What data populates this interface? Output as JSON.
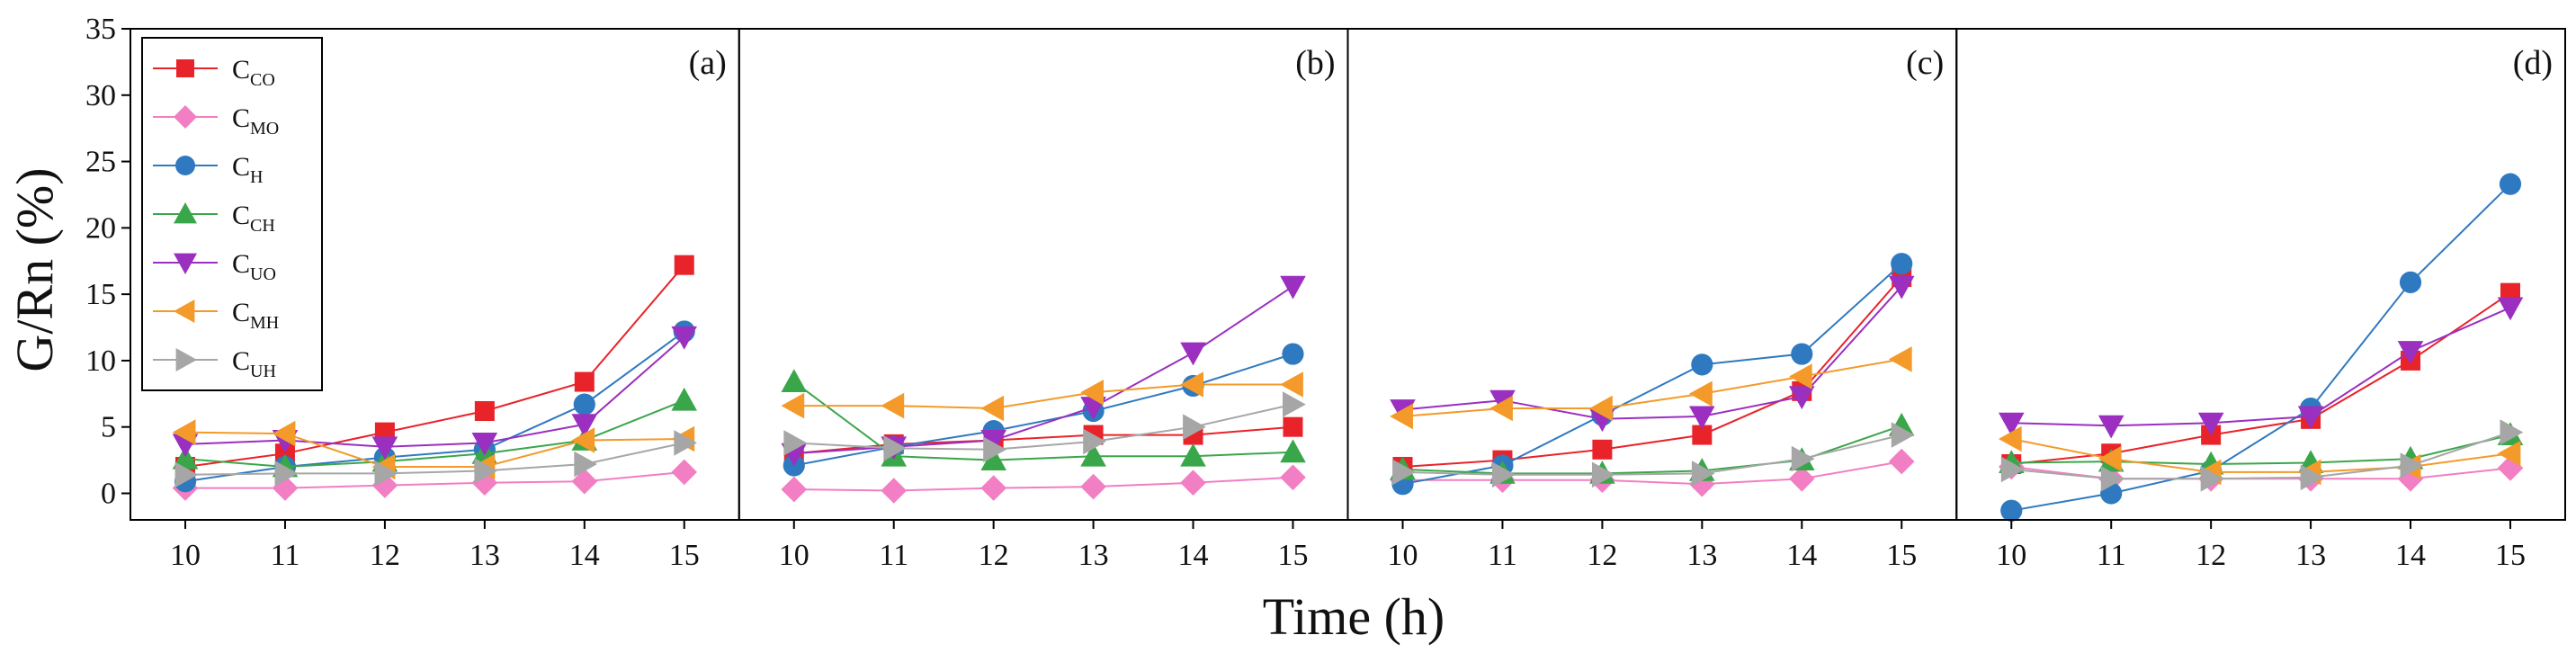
{
  "chart_data": {
    "type": "line",
    "layout": "4 panels side by side, shared y axis",
    "xlabel": "Time (h)",
    "ylabel": "G/Rn (%)",
    "ylim": [
      -2,
      35
    ],
    "yticks": [
      0,
      5,
      10,
      15,
      20,
      25,
      30,
      35
    ],
    "xticks": [
      10,
      11,
      12,
      13,
      14,
      15
    ],
    "x": [
      10,
      11,
      12,
      13,
      14,
      15
    ],
    "legend": {
      "position": "top-left of panel (a)",
      "entries": [
        {
          "id": "CO",
          "base": "C",
          "sub": "CO",
          "color": "#e8232a",
          "marker": "square"
        },
        {
          "id": "MO",
          "base": "C",
          "sub": "MO",
          "color": "#f27ec3",
          "marker": "diamond"
        },
        {
          "id": "H",
          "base": "C",
          "sub": "H",
          "color": "#2f79c0",
          "marker": "circle"
        },
        {
          "id": "CH",
          "base": "C",
          "sub": "CH",
          "color": "#3aa64a",
          "marker": "triangle-up"
        },
        {
          "id": "UO",
          "base": "C",
          "sub": "UO",
          "color": "#9a2fc0",
          "marker": "triangle-down"
        },
        {
          "id": "MH",
          "base": "C",
          "sub": "MH",
          "color": "#f39a2a",
          "marker": "triangle-left"
        },
        {
          "id": "UH",
          "base": "C",
          "sub": "UH",
          "color": "#a6a6a6",
          "marker": "triangle-right"
        }
      ]
    },
    "panels": [
      {
        "label": "(a)",
        "series": [
          {
            "id": "CO",
            "values": [
              2.0,
              3.0,
              4.6,
              6.2,
              8.4,
              17.2
            ]
          },
          {
            "id": "MO",
            "values": [
              0.4,
              0.4,
              0.6,
              0.8,
              0.9,
              1.6
            ]
          },
          {
            "id": "H",
            "values": [
              0.9,
              2.0,
              2.7,
              3.3,
              6.7,
              12.2
            ]
          },
          {
            "id": "CH",
            "values": [
              2.6,
              2.0,
              2.4,
              3.0,
              4.0,
              7.0
            ]
          },
          {
            "id": "UO",
            "values": [
              3.7,
              4.0,
              3.5,
              3.8,
              5.2,
              11.8
            ]
          },
          {
            "id": "MH",
            "values": [
              4.6,
              4.5,
              2.0,
              2.0,
              4.0,
              4.1
            ]
          },
          {
            "id": "UH",
            "values": [
              1.4,
              1.5,
              1.5,
              1.7,
              2.2,
              3.8
            ]
          }
        ]
      },
      {
        "label": "(b)",
        "series": [
          {
            "id": "CO",
            "values": [
              3.0,
              3.7,
              4.0,
              4.4,
              4.4,
              5.0
            ]
          },
          {
            "id": "MO",
            "values": [
              0.3,
              0.2,
              0.4,
              0.5,
              0.8,
              1.2
            ]
          },
          {
            "id": "H",
            "values": [
              2.1,
              3.5,
              4.7,
              6.2,
              8.1,
              10.5
            ]
          },
          {
            "id": "CH",
            "values": [
              8.4,
              2.8,
              2.5,
              2.8,
              2.8,
              3.1
            ]
          },
          {
            "id": "UO",
            "values": [
              3.0,
              3.5,
              4.0,
              6.5,
              10.6,
              15.6
            ]
          },
          {
            "id": "MH",
            "values": [
              6.6,
              6.6,
              6.4,
              7.6,
              8.2,
              8.2
            ]
          },
          {
            "id": "UH",
            "values": [
              3.8,
              3.4,
              3.3,
              3.9,
              5.0,
              6.7
            ]
          }
        ]
      },
      {
        "label": "(c)",
        "series": [
          {
            "id": "CO",
            "values": [
              2.0,
              2.5,
              3.3,
              4.4,
              7.7,
              16.3
            ]
          },
          {
            "id": "MO",
            "values": [
              1.0,
              1.0,
              1.0,
              0.7,
              1.1,
              2.4
            ]
          },
          {
            "id": "H",
            "values": [
              0.7,
              2.1,
              5.9,
              9.7,
              10.5,
              17.3
            ]
          },
          {
            "id": "CH",
            "values": [
              1.8,
              1.5,
              1.5,
              1.7,
              2.5,
              5.1
            ]
          },
          {
            "id": "UO",
            "values": [
              6.3,
              7.0,
              5.6,
              5.8,
              7.3,
              15.6
            ]
          },
          {
            "id": "MH",
            "values": [
              5.8,
              6.4,
              6.4,
              7.5,
              8.8,
              10.1
            ]
          },
          {
            "id": "UH",
            "values": [
              1.6,
              1.4,
              1.4,
              1.5,
              2.6,
              4.4
            ]
          }
        ]
      },
      {
        "label": "(d)",
        "series": [
          {
            "id": "CO",
            "values": [
              2.2,
              3.0,
              4.4,
              5.6,
              10.0,
              15.1
            ]
          },
          {
            "id": "MO",
            "values": [
              2.0,
              1.1,
              1.1,
              1.1,
              1.1,
              1.9
            ]
          },
          {
            "id": "H",
            "values": [
              -1.3,
              0.0,
              1.7,
              6.4,
              15.9,
              23.3
            ]
          },
          {
            "id": "CH",
            "values": [
              2.3,
              2.4,
              2.2,
              2.3,
              2.6,
              4.4
            ]
          },
          {
            "id": "UO",
            "values": [
              5.3,
              5.1,
              5.3,
              5.8,
              10.7,
              14.0
            ]
          },
          {
            "id": "MH",
            "values": [
              4.1,
              2.6,
              1.6,
              1.6,
              2.0,
              3.0
            ]
          },
          {
            "id": "UH",
            "values": [
              1.8,
              1.1,
              1.1,
              1.2,
              2.1,
              4.6
            ]
          }
        ]
      }
    ]
  }
}
